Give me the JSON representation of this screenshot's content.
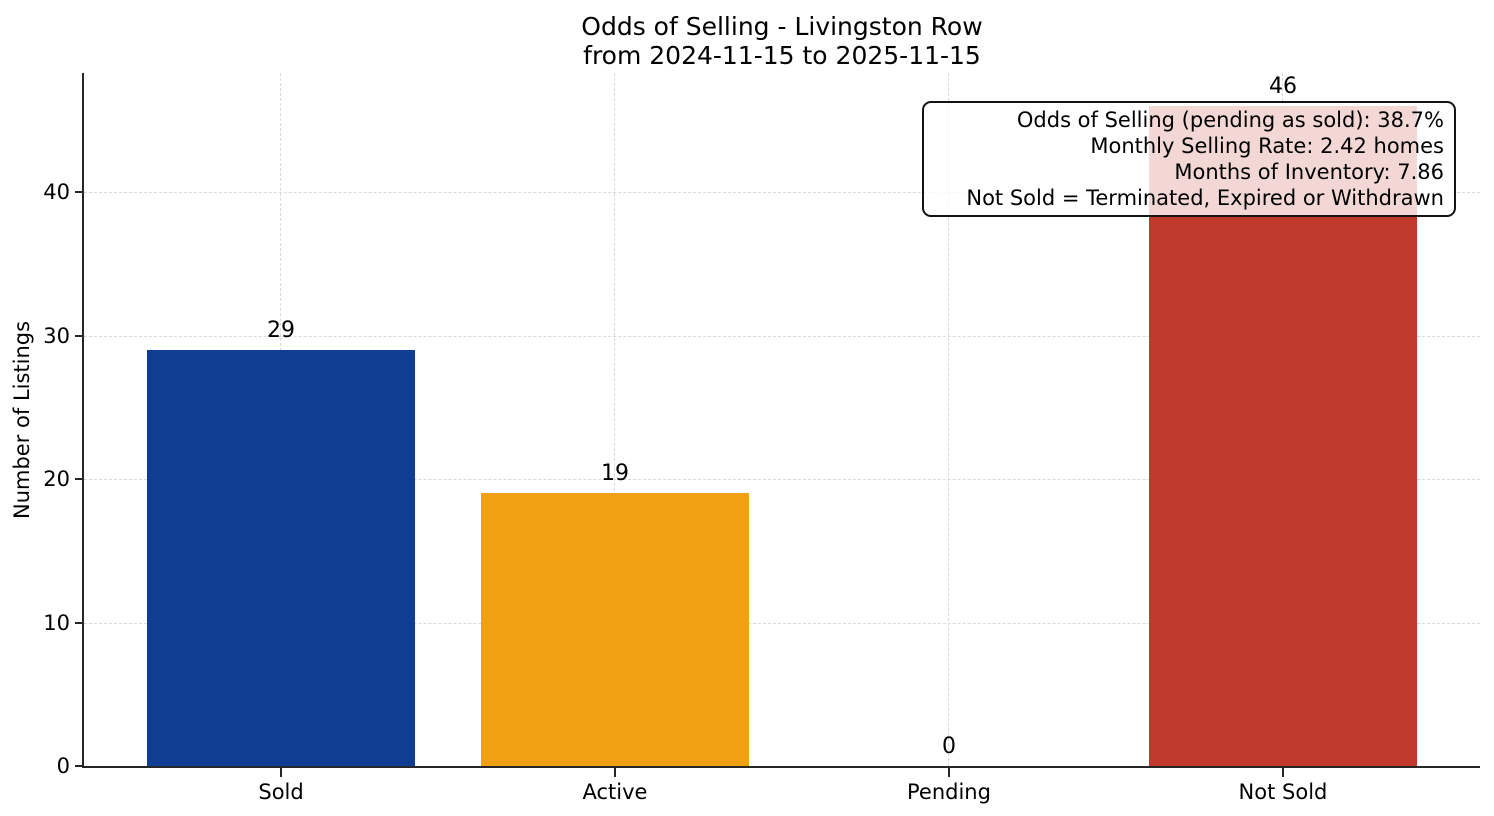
{
  "chart_data": {
    "type": "bar",
    "title": "Odds of Selling - Livingston Row",
    "subtitle": "from 2024-11-15 to 2025-11-15",
    "ylabel": "Number of Listings",
    "xlabel": "",
    "categories": [
      "Sold",
      "Active",
      "Pending",
      "Not Sold"
    ],
    "values": [
      29,
      19,
      0,
      46
    ],
    "value_labels": [
      "29",
      "19",
      "0",
      "46"
    ],
    "bar_colors": [
      "#0f3d94",
      "#f0a012",
      null,
      "#c0392b"
    ],
    "yticks": [
      0,
      10,
      20,
      30,
      40
    ],
    "ylim": [
      0,
      48.3
    ],
    "grid": true,
    "grid_style": "dashed",
    "legend_position": null,
    "annotation_lines": [
      "Odds of Selling (pending as sold): 38.7%",
      "Monthly Selling Rate: 2.42 homes",
      "Months of Inventory: 7.86",
      "Not Sold = Terminated, Expired or Withdrawn"
    ],
    "colors": {
      "sold_bar": "#0f3d94",
      "active_bar": "#f0a012",
      "not_sold_bar": "#c0392b",
      "axis": "#262626",
      "grid": "#d9d9d9",
      "text": "#000000",
      "annotation_bg": "rgba(255,255,255,0.8)"
    }
  }
}
